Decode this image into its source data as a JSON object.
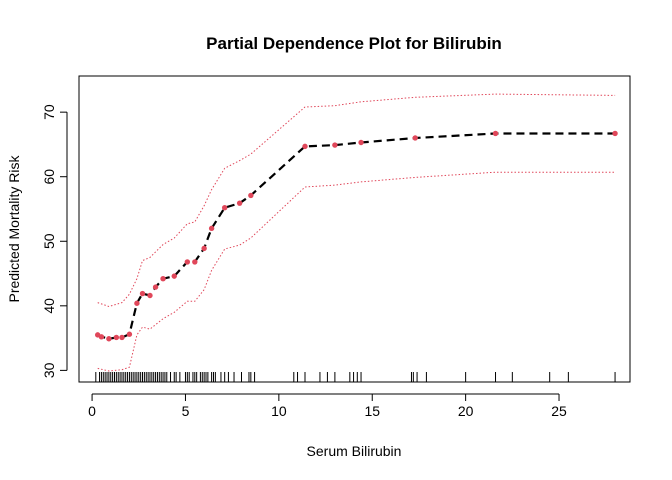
{
  "chart_data": {
    "type": "line",
    "title": "Partial Dependence Plot for Bilirubin",
    "xlabel": "Serum Bilirubin",
    "ylabel": "Predicted Mortality Risk",
    "xlim": [
      -0.7,
      28.8
    ],
    "ylim": [
      28.2,
      75.6
    ],
    "xticks": [
      0,
      5,
      10,
      15,
      20,
      25
    ],
    "yticks": [
      30,
      40,
      50,
      60,
      70
    ],
    "colors": {
      "line": "#000000",
      "points": "#e0475a",
      "band": "#e0475a",
      "axis": "#000000"
    },
    "series": [
      {
        "type": "line+points",
        "style": "dashed",
        "x": [
          0.3,
          0.5,
          0.9,
          1.3,
          1.6,
          2.0,
          2.4,
          2.7,
          3.1,
          3.4,
          3.8,
          4.4,
          5.1,
          5.5,
          6.0,
          6.4,
          7.1,
          7.9,
          8.5,
          11.4,
          13.0,
          14.4,
          17.3,
          21.6,
          28.0
        ],
        "y": [
          35.5,
          35.2,
          34.9,
          35.1,
          35.1,
          35.6,
          40.4,
          41.9,
          41.6,
          42.9,
          44.2,
          44.6,
          46.8,
          46.8,
          48.9,
          52.0,
          55.2,
          55.9,
          57.1,
          64.7,
          64.9,
          65.3,
          66.0,
          66.7,
          66.7
        ]
      },
      {
        "type": "band-upper",
        "style": "dotted",
        "x": [
          0.3,
          0.9,
          1.6,
          2.0,
          2.4,
          2.7,
          3.1,
          3.8,
          4.4,
          5.1,
          5.5,
          6.0,
          6.4,
          7.1,
          7.9,
          8.5,
          11.4,
          13.0,
          14.4,
          17.3,
          21.6,
          28.0
        ],
        "y": [
          40.5,
          39.9,
          40.5,
          41.8,
          44.2,
          47.0,
          47.5,
          49.5,
          50.5,
          52.7,
          53.0,
          55.5,
          58.0,
          61.3,
          62.5,
          63.5,
          70.8,
          71.0,
          71.6,
          72.3,
          72.8,
          72.6
        ]
      },
      {
        "type": "band-lower",
        "style": "dotted",
        "x": [
          0.3,
          0.9,
          1.6,
          2.0,
          2.4,
          2.7,
          3.1,
          3.8,
          4.4,
          5.1,
          5.5,
          6.0,
          6.4,
          7.1,
          7.9,
          8.5,
          11.4,
          13.0,
          14.4,
          17.3,
          21.6,
          28.0
        ],
        "y": [
          30.3,
          29.9,
          30.1,
          30.5,
          35.5,
          36.7,
          36.4,
          38.0,
          39.0,
          40.7,
          40.7,
          42.5,
          45.5,
          48.8,
          49.4,
          50.5,
          58.4,
          58.7,
          59.2,
          59.9,
          60.7,
          60.7
        ]
      }
    ],
    "rug_x": [
      0.2,
      0.4,
      0.5,
      0.6,
      0.7,
      0.8,
      0.9,
      1.0,
      1.1,
      1.2,
      1.3,
      1.4,
      1.5,
      1.6,
      1.7,
      1.8,
      1.9,
      2.0,
      2.1,
      2.2,
      2.3,
      2.4,
      2.5,
      2.6,
      2.7,
      2.8,
      2.9,
      3.0,
      3.1,
      3.2,
      3.3,
      3.4,
      3.5,
      3.6,
      3.7,
      3.8,
      3.9,
      4.0,
      4.2,
      4.4,
      4.5,
      4.7,
      5.0,
      5.1,
      5.2,
      5.4,
      5.5,
      5.6,
      5.8,
      5.9,
      6.0,
      6.1,
      6.2,
      6.4,
      6.5,
      6.6,
      6.9,
      7.1,
      7.3,
      7.6,
      8.0,
      8.4,
      8.5,
      8.7,
      10.8,
      11.0,
      11.4,
      12.2,
      12.6,
      13.0,
      13.8,
      14.0,
      14.2,
      14.4,
      17.1,
      17.2,
      17.4,
      17.9,
      20.0,
      21.6,
      22.5,
      24.5,
      25.5,
      28.0
    ],
    "grid": false,
    "legend": "none"
  }
}
